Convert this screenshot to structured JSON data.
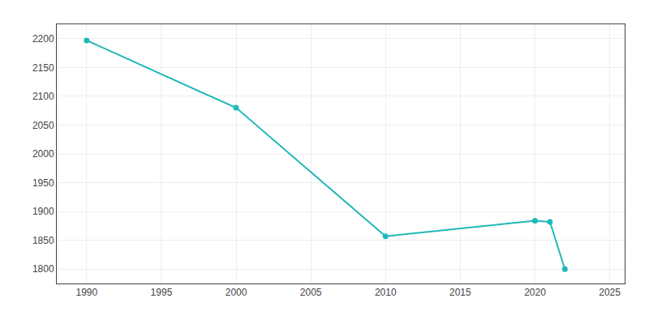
{
  "chart_data": {
    "type": "line",
    "x": [
      1990,
      2000,
      2010,
      2020,
      2021,
      2022
    ],
    "values": [
      2197,
      2080,
      1857,
      1884,
      1882,
      1800
    ],
    "color": "#20b8b8",
    "marker": "circle",
    "line_style": "solid",
    "xlim": [
      1988,
      2026
    ],
    "ylim": [
      1775,
      2225
    ],
    "xticks": [
      1990,
      1995,
      2000,
      2005,
      2010,
      2015,
      2020,
      2025
    ],
    "yticks": [
      1800,
      1850,
      1900,
      1950,
      2000,
      2050,
      2100,
      2150,
      2200
    ],
    "grid": true
  }
}
